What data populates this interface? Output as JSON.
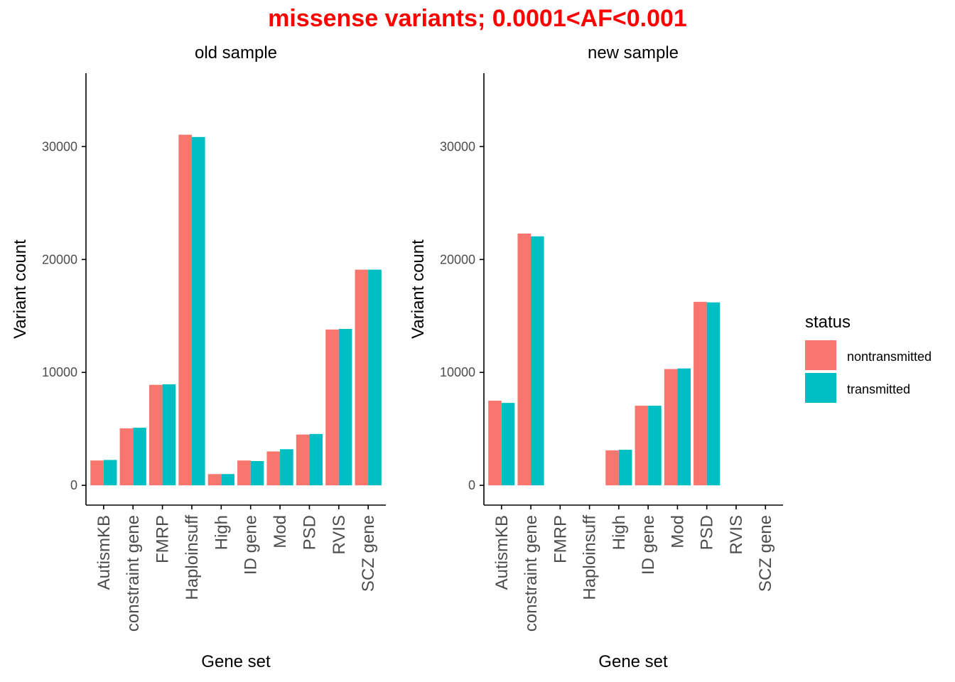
{
  "title": "missense variants; 0.0001<AF<0.001",
  "colors": {
    "title": "#FF0000",
    "nontransmitted": "#F8766D",
    "transmitted": "#00BFC4",
    "axis": "#000000",
    "tick_text": "#4D4D4D"
  },
  "legend": {
    "title": "status",
    "items": [
      {
        "label": "nontransmitted",
        "color": "#F8766D"
      },
      {
        "label": "transmitted",
        "color": "#00BFC4"
      }
    ]
  },
  "chart_data": [
    {
      "type": "bar",
      "title": "old sample",
      "xlabel": "Gene set",
      "ylabel": "Variant count",
      "ylim": [
        -1750,
        36500
      ],
      "yticks": [
        0,
        10000,
        20000,
        30000
      ],
      "ytick_labels": [
        "0",
        "10000",
        "20000",
        "30000"
      ],
      "categories": [
        "AutismKB",
        "constraint gene",
        "FMRP",
        "Haploinsuff",
        "High",
        "ID gene",
        "Mod",
        "PSD",
        "RVIS",
        "SCZ gene"
      ],
      "series": [
        {
          "name": "nontransmitted",
          "values": [
            2200,
            5050,
            8900,
            31050,
            1000,
            2200,
            3000,
            4500,
            13800,
            19100
          ]
        },
        {
          "name": "transmitted",
          "values": [
            2250,
            5100,
            8950,
            30850,
            1000,
            2150,
            3200,
            4550,
            13850,
            19100
          ]
        }
      ],
      "legend": "right",
      "grid": false
    },
    {
      "type": "bar",
      "title": "new sample",
      "xlabel": "Gene set",
      "ylabel": "Variant count",
      "ylim": [
        -1750,
        36500
      ],
      "yticks": [
        0,
        10000,
        20000,
        30000
      ],
      "ytick_labels": [
        "0",
        "10000",
        "20000",
        "30000"
      ],
      "categories": [
        "AutismKB",
        "constraint gene",
        "FMRP",
        "Haploinsuff",
        "High",
        "ID gene",
        "Mod",
        "PSD",
        "RVIS",
        "SCZ gene"
      ],
      "series": [
        {
          "name": "nontransmitted",
          "values": [
            7500,
            22300,
            0,
            0,
            3100,
            7050,
            10300,
            16250,
            0,
            0
          ]
        },
        {
          "name": "transmitted",
          "values": [
            7300,
            22050,
            0,
            0,
            3150,
            7050,
            10350,
            16200,
            0,
            0
          ]
        }
      ],
      "legend": "right",
      "grid": false
    }
  ]
}
